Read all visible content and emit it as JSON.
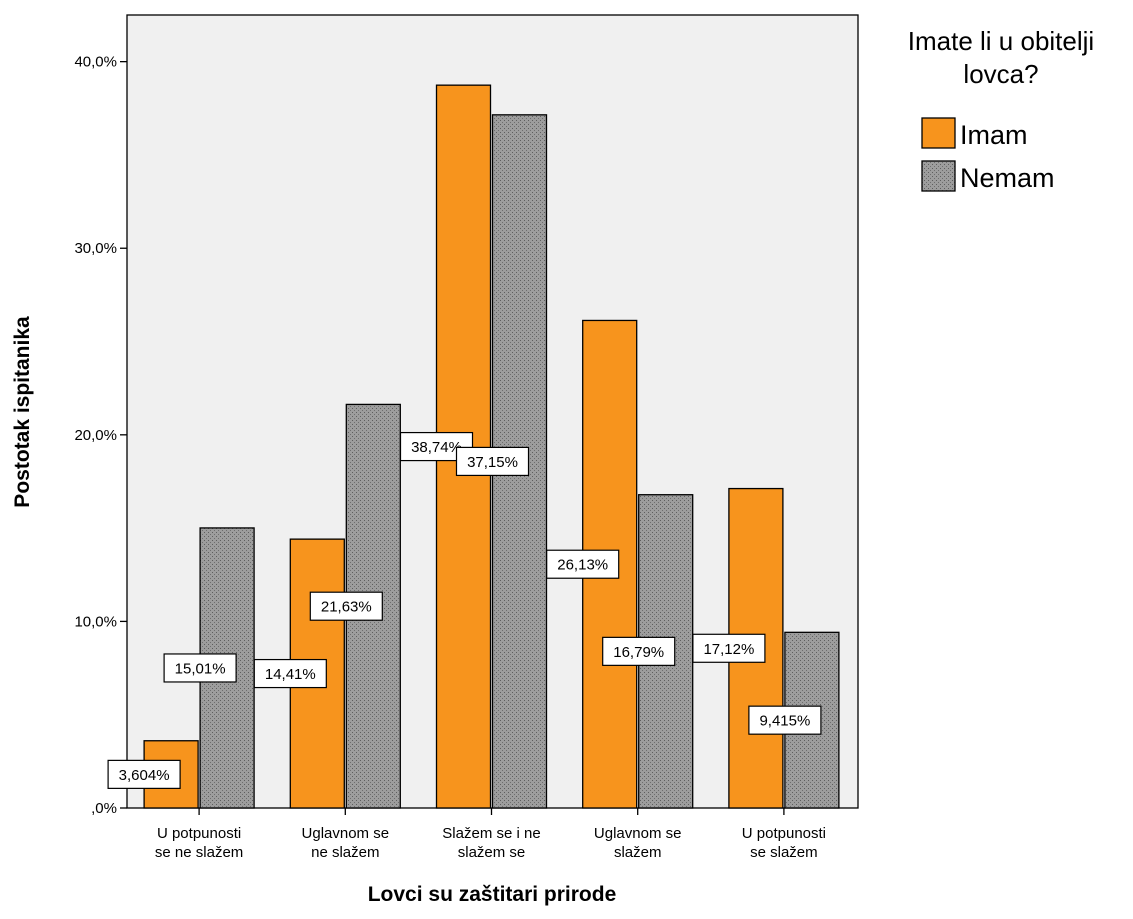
{
  "chart_data": {
    "type": "bar",
    "categories": [
      [
        "U potpunosti",
        "se ne slažem"
      ],
      [
        "Uglavnom se",
        "ne slažem"
      ],
      [
        "Slažem se i ne",
        "slažem se"
      ],
      [
        "Uglavnom se",
        "slažem"
      ],
      [
        "U potpunosti",
        "se slažem"
      ]
    ],
    "series": [
      {
        "name": "Imam",
        "color": "#f7941d",
        "pattern": "solid",
        "values": [
          3.604,
          14.41,
          38.74,
          26.13,
          17.12
        ],
        "labels": [
          "3,604%",
          "14,41%",
          "38,74%",
          "26,13%",
          "17,12%"
        ]
      },
      {
        "name": "Nemam",
        "color": "#9d9d9d",
        "pattern": "dotted",
        "values": [
          15.01,
          21.63,
          37.15,
          16.79,
          9.415
        ],
        "labels": [
          "15,01%",
          "21,63%",
          "37,15%",
          "16,79%",
          "9,415%"
        ]
      }
    ],
    "xlabel": "Lovci su zaštitari prirode",
    "ylabel": "Postotak ispitanika",
    "ylim": [
      0,
      42.5
    ],
    "yticks": [
      0,
      10,
      20,
      30,
      40
    ],
    "ytick_labels": [
      ",0%",
      "10,0%",
      "20,0%",
      "30,0%",
      "40,0%"
    ],
    "legend": {
      "title": [
        "Imate li u obitelji",
        "lovca?"
      ],
      "position": "right"
    },
    "grid": false,
    "plot_background": "#f0f0f0"
  }
}
